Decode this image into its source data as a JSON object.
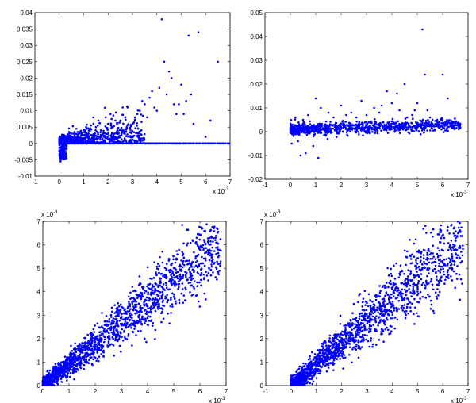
{
  "marker_color": "#0000ff",
  "axes_color": "#000000",
  "chart_data": [
    {
      "type": "scatter",
      "title": "",
      "xlabel": "",
      "ylabel": "",
      "xlim": [
        -1,
        7
      ],
      "ylim": [
        -0.01,
        0.04
      ],
      "xticks": [
        -1,
        0,
        1,
        2,
        3,
        4,
        5,
        6,
        7
      ],
      "xtick_labels": [
        "-1",
        "0",
        "1",
        "2",
        "3",
        "4",
        "5",
        "6",
        "7"
      ],
      "yticks": [
        -0.01,
        -0.005,
        0,
        0.005,
        0.01,
        0.015,
        0.02,
        0.025,
        0.03,
        0.035,
        0.04
      ],
      "ytick_labels": [
        "-0.01",
        "-0.005",
        "0",
        "0.005",
        "0.01",
        "0.015",
        "0.02",
        "0.025",
        "0.03",
        "0.035",
        "0.04"
      ],
      "x_multiplier": {
        "base": "x 10",
        "exp": "-3"
      },
      "y_multiplier": null,
      "points": [
        [
          0.05,
          -0.0055
        ],
        [
          0.1,
          -0.004
        ],
        [
          0.2,
          -0.003
        ],
        [
          0.15,
          -0.002
        ],
        [
          0.3,
          -0.0015
        ],
        [
          0.05,
          0.001
        ],
        [
          0.3,
          0.002
        ],
        [
          0.5,
          0.001
        ],
        [
          0.6,
          0.003
        ],
        [
          0.8,
          0.002
        ],
        [
          1.0,
          0.004
        ],
        [
          1.2,
          0.003
        ],
        [
          1.5,
          0.005
        ],
        [
          1.7,
          0.004
        ],
        [
          2.0,
          0.006
        ],
        [
          2.2,
          0.005
        ],
        [
          2.5,
          0.007
        ],
        [
          2.7,
          0.008
        ],
        [
          2.8,
          0.011
        ],
        [
          3.0,
          0.006
        ],
        [
          3.2,
          0.009
        ],
        [
          3.3,
          0.01
        ],
        [
          3.5,
          0.012
        ],
        [
          3.6,
          0.008
        ],
        [
          3.7,
          0.014
        ],
        [
          3.8,
          0.016
        ],
        [
          4.0,
          0.01
        ],
        [
          4.2,
          0.038
        ],
        [
          4.3,
          0.025
        ],
        [
          4.4,
          0.015
        ],
        [
          4.6,
          0.02
        ],
        [
          4.7,
          0.012
        ],
        [
          4.8,
          0.009
        ],
        [
          5.0,
          0.018
        ],
        [
          5.2,
          0.013
        ],
        [
          5.3,
          0.033
        ],
        [
          5.5,
          0.006
        ],
        [
          5.7,
          0.034
        ],
        [
          6.0,
          0.002
        ],
        [
          6.2,
          0.007
        ],
        [
          6.5,
          0.025
        ],
        [
          0.7,
          0.0045
        ],
        [
          1.1,
          0.005
        ],
        [
          1.4,
          0.006
        ],
        [
          1.9,
          0.008
        ],
        [
          2.3,
          0.007
        ],
        [
          2.6,
          0.011
        ],
        [
          3.1,
          0.008
        ],
        [
          3.4,
          0.013
        ],
        [
          3.9,
          0.011
        ],
        [
          4.1,
          0.017
        ],
        [
          4.5,
          0.022
        ],
        [
          4.9,
          0.012
        ],
        [
          5.1,
          0.009
        ],
        [
          5.4,
          0.015
        ],
        [
          2.1,
          0.009
        ],
        [
          1.6,
          0.007
        ],
        [
          0.9,
          0.003
        ],
        [
          0.4,
          0.0035
        ],
        [
          1.3,
          0.0055
        ]
      ],
      "note_band": {
        "y": 0,
        "x_from": 0,
        "x_to": 7
      }
    },
    {
      "type": "scatter",
      "title": "",
      "xlabel": "",
      "ylabel": "",
      "xlim": [
        -1,
        7
      ],
      "ylim": [
        -0.02,
        0.05
      ],
      "xticks": [
        -1,
        0,
        1,
        2,
        3,
        4,
        5,
        6,
        7
      ],
      "xtick_labels": [
        "-1",
        "0",
        "1",
        "2",
        "3",
        "4",
        "5",
        "6",
        "7"
      ],
      "yticks": [
        -0.02,
        -0.01,
        0,
        0.01,
        0.02,
        0.03,
        0.04,
        0.05
      ],
      "ytick_labels": [
        "-0.02",
        "-0.01",
        "0",
        "0.01",
        "0.02",
        "0.03",
        "0.04",
        "0.05"
      ],
      "x_multiplier": {
        "base": "x 10",
        "exp": "-3"
      },
      "y_multiplier": null,
      "points": [
        [
          0.05,
          -0.005
        ],
        [
          0.3,
          -0.004
        ],
        [
          0.4,
          -0.01
        ],
        [
          0.6,
          -0.009
        ],
        [
          0.9,
          -0.006
        ],
        [
          1.1,
          -0.011
        ],
        [
          1.0,
          0.014
        ],
        [
          1.2,
          0.01
        ],
        [
          1.5,
          0.008
        ],
        [
          2.0,
          0.011
        ],
        [
          2.4,
          0.008
        ],
        [
          2.8,
          0.013
        ],
        [
          3.0,
          0.007
        ],
        [
          3.3,
          0.01
        ],
        [
          3.5,
          0.008
        ],
        [
          3.8,
          0.017
        ],
        [
          4.0,
          0.012
        ],
        [
          4.3,
          0.009
        ],
        [
          4.5,
          0.02
        ],
        [
          4.8,
          0.007
        ],
        [
          5.0,
          0.012
        ],
        [
          5.2,
          0.043
        ],
        [
          5.3,
          0.024
        ],
        [
          5.4,
          0.009
        ],
        [
          5.5,
          0.006
        ],
        [
          5.8,
          0.004
        ],
        [
          6.0,
          0.024
        ],
        [
          6.2,
          0.014
        ],
        [
          6.6,
          0.003
        ],
        [
          0.2,
          0.006
        ],
        [
          0.5,
          0.005
        ],
        [
          0.7,
          0.007
        ],
        [
          1.7,
          0.006
        ],
        [
          2.2,
          0.007
        ],
        [
          2.6,
          0.006
        ],
        [
          3.6,
          0.011
        ],
        [
          4.2,
          0.016
        ],
        [
          4.6,
          0.006
        ],
        [
          4.9,
          0.009
        ],
        [
          5.6,
          0.005
        ]
      ],
      "trend_band": {
        "x_from": 0,
        "x_to": 6.7,
        "y_from": 0.001,
        "y_to": 0.003
      }
    },
    {
      "type": "scatter",
      "title": "",
      "xlabel": "",
      "ylabel": "",
      "xlim": [
        0,
        7
      ],
      "ylim": [
        0,
        7
      ],
      "xticks": [
        0,
        1,
        2,
        3,
        4,
        5,
        6,
        7
      ],
      "xtick_labels": [
        "0",
        "1",
        "2",
        "3",
        "4",
        "5",
        "6",
        "7"
      ],
      "yticks": [
        0,
        1,
        2,
        3,
        4,
        5,
        6,
        7
      ],
      "ytick_labels": [
        "0",
        "1",
        "2",
        "3",
        "4",
        "5",
        "6",
        "7"
      ],
      "x_multiplier": {
        "base": "x 10",
        "exp": "-3"
      },
      "y_multiplier": {
        "base": "x 10",
        "exp": "-3"
      },
      "trend": {
        "slope": 0.9,
        "spread": 0.55,
        "x_max": 6.8
      }
    },
    {
      "type": "scatter",
      "title": "",
      "xlabel": "",
      "ylabel": "",
      "xlim": [
        -1,
        7
      ],
      "ylim": [
        0,
        7
      ],
      "xticks": [
        -1,
        0,
        1,
        2,
        3,
        4,
        5,
        6,
        7
      ],
      "xtick_labels": [
        "-1",
        "0",
        "1",
        "2",
        "3",
        "4",
        "5",
        "6",
        "7"
      ],
      "yticks": [
        0,
        1,
        2,
        3,
        4,
        5,
        6,
        7
      ],
      "ytick_labels": [
        "0",
        "1",
        "2",
        "3",
        "4",
        "5",
        "6",
        "7"
      ],
      "x_multiplier": {
        "base": "x 10",
        "exp": "-3"
      },
      "y_multiplier": {
        "base": "x 10",
        "exp": "-3"
      },
      "trend": {
        "slope": 0.9,
        "spread": 0.6,
        "x_max": 6.8
      }
    }
  ]
}
